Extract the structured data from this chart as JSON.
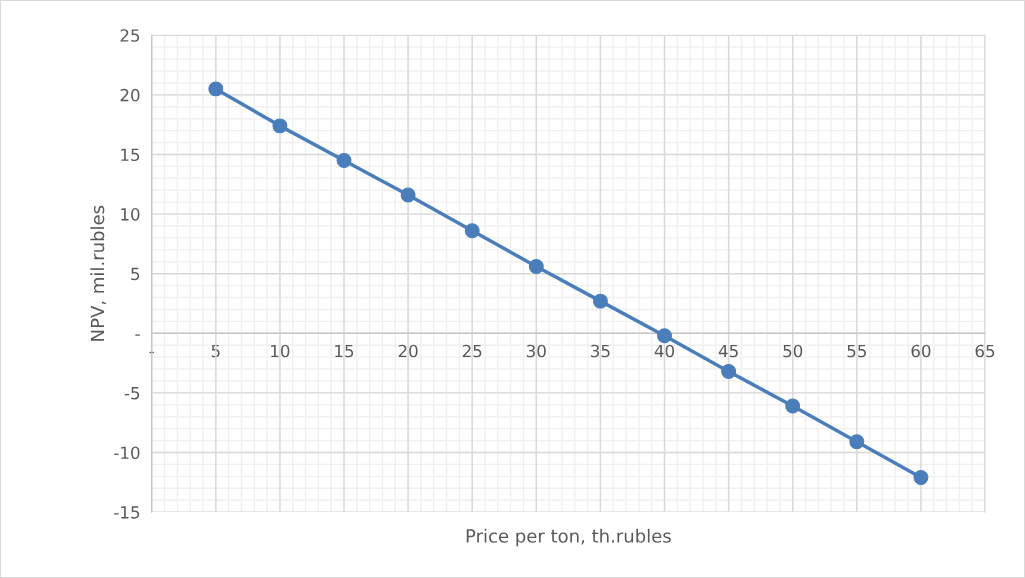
{
  "chart_data": {
    "type": "line",
    "xlabel": "Price per ton, th.rubles",
    "ylabel": "NPV, mil.rubles",
    "x": [
      5,
      10,
      15,
      20,
      25,
      30,
      35,
      40,
      45,
      50,
      55,
      60
    ],
    "series": [
      {
        "color": "#4a7ebb",
        "values": [
          20.5,
          17.4,
          14.5,
          11.6,
          8.6,
          5.6,
          2.7,
          -0.2,
          -3.2,
          -6.1,
          -9.1,
          -12.1
        ]
      }
    ],
    "xlim": [
      0,
      65
    ],
    "xticks": [
      {
        "value": 0,
        "label": "-"
      },
      5,
      10,
      15,
      20,
      25,
      30,
      35,
      40,
      45,
      50,
      55,
      60,
      65
    ],
    "ylim": [
      -15,
      25
    ],
    "yticks": [
      -15,
      -10,
      -5,
      {
        "value": 0,
        "label": "-"
      },
      5,
      10,
      15,
      20,
      25
    ],
    "grid": true,
    "marker": "circle",
    "line_style": "solid"
  }
}
